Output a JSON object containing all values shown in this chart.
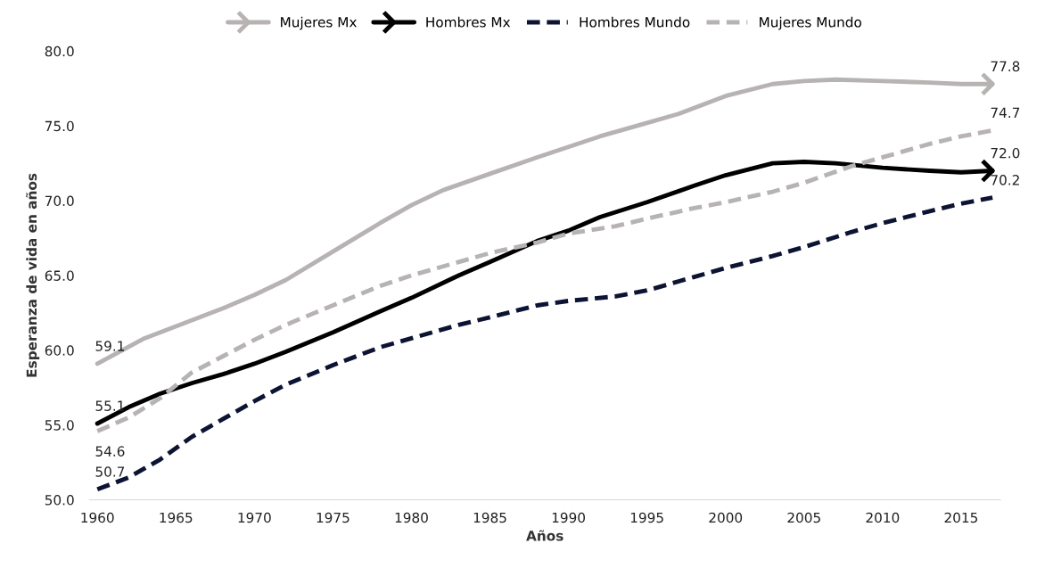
{
  "chart_data": {
    "type": "line",
    "xlabel": "Años",
    "ylabel": "Esperanza de vida en años",
    "xlim": [
      1959.5,
      2017.5
    ],
    "ylim": [
      50,
      80
    ],
    "xticks": [
      1960,
      1965,
      1970,
      1975,
      1980,
      1985,
      1990,
      1995,
      2000,
      2005,
      2010,
      2015
    ],
    "yticks": [
      {
        "value": 50,
        "label": "50.0"
      },
      {
        "value": 55,
        "label": "55.0"
      },
      {
        "value": 60,
        "label": "60.0"
      },
      {
        "value": 65,
        "label": "65.0"
      },
      {
        "value": 70,
        "label": "70.0"
      },
      {
        "value": 75,
        "label": "75.0"
      },
      {
        "value": 80,
        "label": "80.0"
      }
    ],
    "grid": false,
    "legend": "top",
    "series": [
      {
        "name": "Mujeres Mx",
        "color": "#b8b3b3",
        "line_style": "solid",
        "x": [
          1960,
          1963,
          1965,
          1968,
          1970,
          1972,
          1975,
          1978,
          1980,
          1982,
          1985,
          1988,
          1990,
          1992,
          1995,
          1997,
          2000,
          2003,
          2005,
          2007,
          2010,
          2013,
          2015,
          2017
        ],
        "values": [
          59.1,
          60.8,
          61.6,
          62.8,
          63.7,
          64.7,
          66.6,
          68.5,
          69.7,
          70.7,
          71.8,
          72.9,
          73.6,
          74.3,
          75.2,
          75.8,
          77.0,
          77.8,
          78.0,
          78.1,
          78.0,
          77.9,
          77.8,
          77.8
        ],
        "value_labels": [
          "59.1",
          null,
          null,
          null,
          null,
          null,
          null,
          null,
          null,
          null,
          null,
          null,
          null,
          null,
          null,
          null,
          null,
          null,
          null,
          null,
          null,
          null,
          null,
          "77.8"
        ]
      },
      {
        "name": "Hombres Mx",
        "color": "#000000",
        "line_style": "solid",
        "x": [
          1960,
          1962,
          1964,
          1966,
          1968,
          1970,
          1972,
          1975,
          1978,
          1980,
          1983,
          1985,
          1988,
          1990,
          1992,
          1995,
          1998,
          2000,
          2003,
          2005,
          2007,
          2010,
          2013,
          2015,
          2017
        ],
        "values": [
          55.1,
          56.2,
          57.1,
          57.8,
          58.4,
          59.1,
          59.9,
          61.2,
          62.6,
          63.5,
          65.0,
          65.9,
          67.3,
          68.0,
          68.9,
          69.9,
          71.0,
          71.7,
          72.5,
          72.6,
          72.5,
          72.2,
          72.0,
          71.9,
          72.0
        ],
        "value_labels": [
          "55.1",
          null,
          null,
          null,
          null,
          null,
          null,
          null,
          null,
          null,
          null,
          null,
          null,
          null,
          null,
          null,
          null,
          null,
          null,
          null,
          null,
          null,
          null,
          null,
          "72.0"
        ]
      },
      {
        "name": "Hombres Mundo",
        "color": "#0d1433",
        "line_style": "dashed",
        "x": [
          1960,
          1962,
          1964,
          1966,
          1968,
          1970,
          1972,
          1975,
          1978,
          1980,
          1983,
          1985,
          1988,
          1990,
          1993,
          1995,
          1998,
          2000,
          2003,
          2005,
          2008,
          2010,
          2013,
          2015,
          2017
        ],
        "values": [
          50.7,
          51.5,
          52.7,
          54.2,
          55.4,
          56.6,
          57.7,
          59.0,
          60.2,
          60.8,
          61.7,
          62.2,
          63.0,
          63.3,
          63.6,
          64.0,
          64.9,
          65.5,
          66.3,
          66.9,
          67.9,
          68.5,
          69.3,
          69.8,
          70.2
        ],
        "value_labels": [
          "50.7",
          null,
          null,
          null,
          null,
          null,
          null,
          null,
          null,
          null,
          null,
          null,
          null,
          null,
          null,
          null,
          null,
          null,
          null,
          null,
          null,
          null,
          null,
          null,
          "70.2"
        ]
      },
      {
        "name": "Mujeres Mundo",
        "color": "#b8b3b3",
        "line_style": "dashed",
        "x": [
          1960,
          1962,
          1964,
          1966,
          1968,
          1970,
          1972,
          1975,
          1978,
          1980,
          1983,
          1985,
          1988,
          1990,
          1993,
          1995,
          1998,
          2000,
          2003,
          2005,
          2008,
          2010,
          2013,
          2015,
          2017
        ],
        "values": [
          54.6,
          55.5,
          56.8,
          58.5,
          59.6,
          60.7,
          61.7,
          63.0,
          64.3,
          65.0,
          65.9,
          66.5,
          67.2,
          67.8,
          68.3,
          68.8,
          69.5,
          69.9,
          70.6,
          71.2,
          72.3,
          72.9,
          73.8,
          74.3,
          74.7
        ],
        "value_labels": [
          "54.6",
          null,
          null,
          null,
          null,
          null,
          null,
          null,
          null,
          null,
          null,
          null,
          null,
          null,
          null,
          null,
          null,
          null,
          null,
          null,
          null,
          null,
          null,
          null,
          "74.7"
        ]
      }
    ]
  }
}
